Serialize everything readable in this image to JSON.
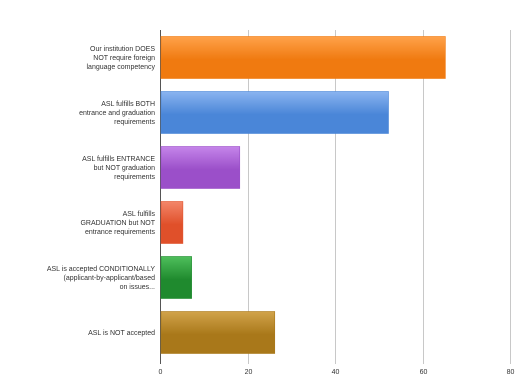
{
  "chart_data": {
    "type": "bar",
    "orientation": "horizontal",
    "title": "",
    "xlabel": "",
    "ylabel": "",
    "xlim": [
      0,
      80
    ],
    "x_ticks": [
      "0",
      "20",
      "40",
      "60",
      "80"
    ],
    "grid": true,
    "legend": "none",
    "categories": [
      [
        "Our institution DOES",
        "NOT require foreign",
        "language competency"
      ],
      [
        "ASL fulfills BOTH",
        "entrance and graduation",
        "requirements"
      ],
      [
        "ASL fulfills ENTRANCE",
        "but NOT graduation",
        "requirements"
      ],
      [
        "ASL fulfills",
        "GRADUATION but NOT",
        "entrance requirements"
      ],
      [
        "ASL is accepted CONDITIONALLY",
        "(applicant-by-applicant/based",
        "on issues..."
      ],
      [
        "ASL is NOT accepted"
      ]
    ],
    "values": [
      65,
      52,
      18,
      5,
      7,
      26
    ],
    "colors": [
      "#f07a10",
      "#4a86d8",
      "#9b4fc9",
      "#e0502a",
      "#1f8a2e",
      "#a9781a"
    ],
    "colors_light": [
      "#ffa24a",
      "#8ab4f0",
      "#c585ea",
      "#f3866a",
      "#4fbf5c",
      "#d1a34a"
    ]
  }
}
